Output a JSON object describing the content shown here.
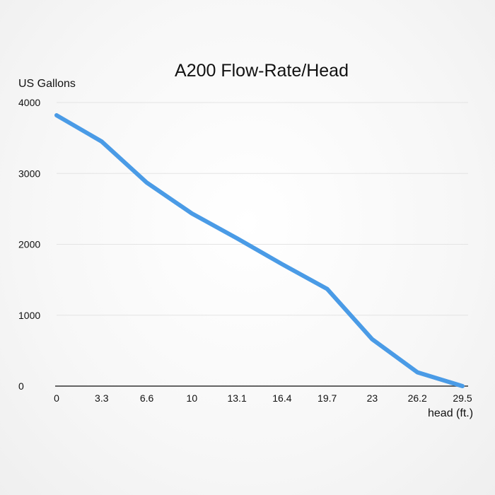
{
  "chart_data": {
    "type": "line",
    "title": "A200 Flow-Rate/Head",
    "xlabel": "head (ft.)",
    "ylabel": "US Gallons",
    "categories": [
      "0",
      "3.3",
      "6.6",
      "10",
      "13.1",
      "16.4",
      "19.7",
      "23",
      "26.2",
      "29.5"
    ],
    "series": [
      {
        "values": [
          3820,
          3450,
          2870,
          2435,
          2085,
          1720,
          1370,
          660,
          195,
          0
        ]
      }
    ],
    "ylim": [
      0,
      4000
    ],
    "yticks": [
      "0",
      "1000",
      "2000",
      "3000",
      "4000"
    ],
    "grid": true,
    "line_color": "#4a9be6"
  }
}
